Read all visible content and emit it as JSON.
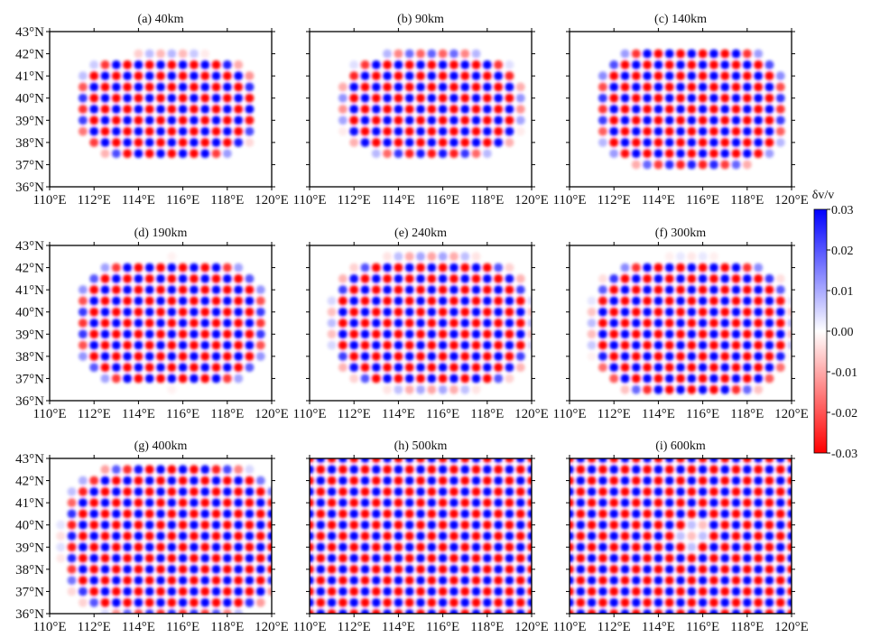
{
  "chart_data": {
    "type": "heatmap",
    "xlim": [
      110,
      120
    ],
    "ylim": [
      36,
      43
    ],
    "x_ticks": [
      "110°E",
      "112°E",
      "114°E",
      "116°E",
      "118°E",
      "120°E"
    ],
    "x_tick_values": [
      110,
      112,
      114,
      116,
      118,
      120
    ],
    "y_ticks": [
      "43°N",
      "42°N",
      "41°N",
      "40°N",
      "39°N",
      "38°N",
      "37°N",
      "36°N"
    ],
    "y_tick_values": [
      43,
      42,
      41,
      40,
      39,
      38,
      37,
      36
    ],
    "cell_size_deg": 0.5,
    "amplitude": 0.03,
    "panels": [
      {
        "title": "(a) 40km",
        "region": {
          "lon": 115.3,
          "lat": 39.6,
          "rlon": 3.9,
          "rlat": 2.3
        }
      },
      {
        "title": "(b) 90km",
        "region": {
          "lon": 115.5,
          "lat": 39.7,
          "rlon": 3.9,
          "rlat": 2.3
        }
      },
      {
        "title": "(c) 140km",
        "region": {
          "lon": 115.5,
          "lat": 39.6,
          "rlon": 4.1,
          "rlat": 2.7
        }
      },
      {
        "title": "(d) 190km",
        "region": {
          "lon": 115.5,
          "lat": 39.5,
          "rlon": 4.1,
          "rlat": 2.8
        }
      },
      {
        "title": "(e) 240km",
        "region": {
          "lon": 115.5,
          "lat": 39.5,
          "rlon": 4.3,
          "rlat": 2.9
        }
      },
      {
        "title": "(f) 300km",
        "region": {
          "lon": 115.5,
          "lat": 39.3,
          "rlon": 4.3,
          "rlat": 3.0
        }
      },
      {
        "title": "(g) 400km",
        "region": {
          "lon": 115.6,
          "lat": 39.3,
          "rlon": 4.8,
          "rlat": 3.4
        }
      },
      {
        "title": "(h) 500km",
        "region": null
      },
      {
        "title": "(i) 600km",
        "region": null
      }
    ],
    "colorbar": {
      "label": "δv/v",
      "range": [
        -0.03,
        0.03
      ],
      "ticks": [
        "0.03",
        "0.02",
        "0.01",
        "0.00",
        "-0.01",
        "-0.02",
        "-0.03"
      ],
      "tick_values": [
        0.03,
        0.02,
        0.01,
        0,
        -0.01,
        -0.02,
        -0.03
      ],
      "colors": {
        "positive": "#0000ff",
        "zero": "#ffffff",
        "negative": "#ff0000"
      }
    }
  }
}
